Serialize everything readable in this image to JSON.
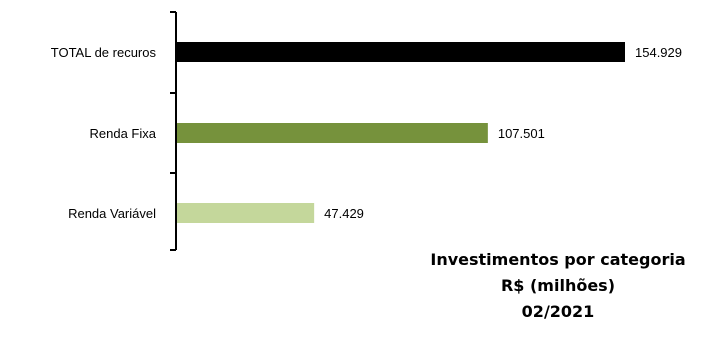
{
  "chart_data": {
    "type": "bar",
    "orientation": "horizontal",
    "categories": [
      "TOTAL de recuros",
      "Renda Fixa",
      "Renda Variável"
    ],
    "values": [
      154929,
      107501,
      47429
    ],
    "value_labels": [
      "154.929",
      "107.501",
      "47.429"
    ],
    "colors": [
      "#000000",
      "#76923c",
      "#c4d79b"
    ],
    "title_lines": [
      "Investimentos por categoria",
      "R$ (milhões)",
      "02/2021"
    ],
    "xlim": [
      0,
      154929
    ],
    "grid": false,
    "legend": "none"
  }
}
